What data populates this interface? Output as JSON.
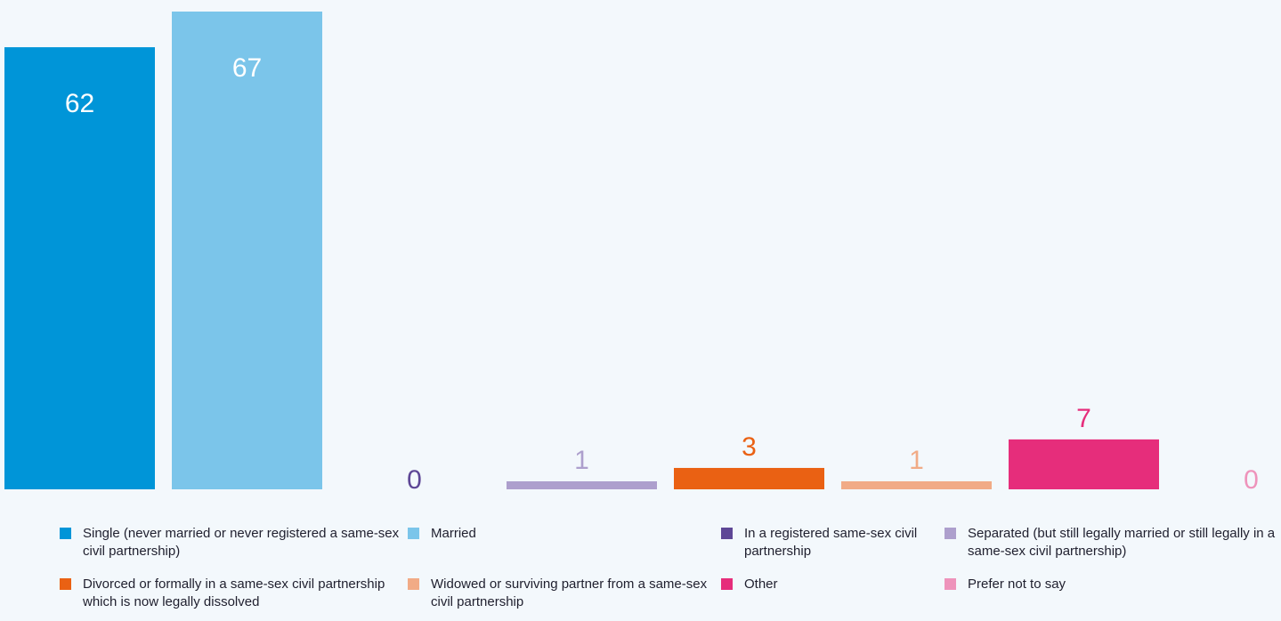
{
  "chart_data": {
    "type": "bar",
    "categories": [
      "Single (never married or never registered a same-sex civil partnership)",
      "Married",
      "In a registered same-sex civil partnership",
      "Separated (but still legally married or still legally in a same-sex civil partnership)",
      "Divorced or formally in a same-sex civil partnership which is now legally dissolved",
      "Widowed or surviving partner from a same-sex civil partnership",
      "Other",
      "Prefer not to say"
    ],
    "values": [
      62,
      67,
      0,
      1,
      3,
      1,
      7,
      0
    ],
    "colors": [
      "#0095d8",
      "#7bc5ea",
      "#5e4796",
      "#ad9fcd",
      "#ea6113",
      "#f1ab86",
      "#e62d7b",
      "#ee93bb"
    ],
    "label_colors": [
      "#ffffff",
      "#ffffff",
      "#5e4796",
      "#ad9fcd",
      "#ea6113",
      "#f1ab86",
      "#e62d7b",
      "#ee93bb"
    ],
    "ylim": [
      0,
      67
    ],
    "grid": false,
    "legend": "bottom"
  },
  "legend": [
    {
      "label": "Single (never married or never registered a same-sex civil partnership)",
      "color": "#0095d8",
      "icon": "square"
    },
    {
      "label": "Married",
      "color": "#7bc5ea",
      "icon": "square"
    },
    {
      "label": "In a registered same-sex civil partnership",
      "color": "#5e4796",
      "icon": "square"
    },
    {
      "label": "Separated (but still legally married or still legally in a same-sex civil partnership)",
      "color": "#ad9fcd",
      "icon": "square"
    },
    {
      "label": "Divorced or formally in a same-sex civil partnership which is now legally dissolved",
      "color": "#ea6113",
      "icon": "square"
    },
    {
      "label": "Widowed or surviving partner from a same-sex civil partnership",
      "color": "#f1ab86",
      "icon": "square"
    },
    {
      "label": "Other",
      "color": "#e62d7b",
      "icon": "square"
    },
    {
      "label": "Prefer not to say",
      "color": "#ee93bb",
      "icon": "square"
    }
  ]
}
